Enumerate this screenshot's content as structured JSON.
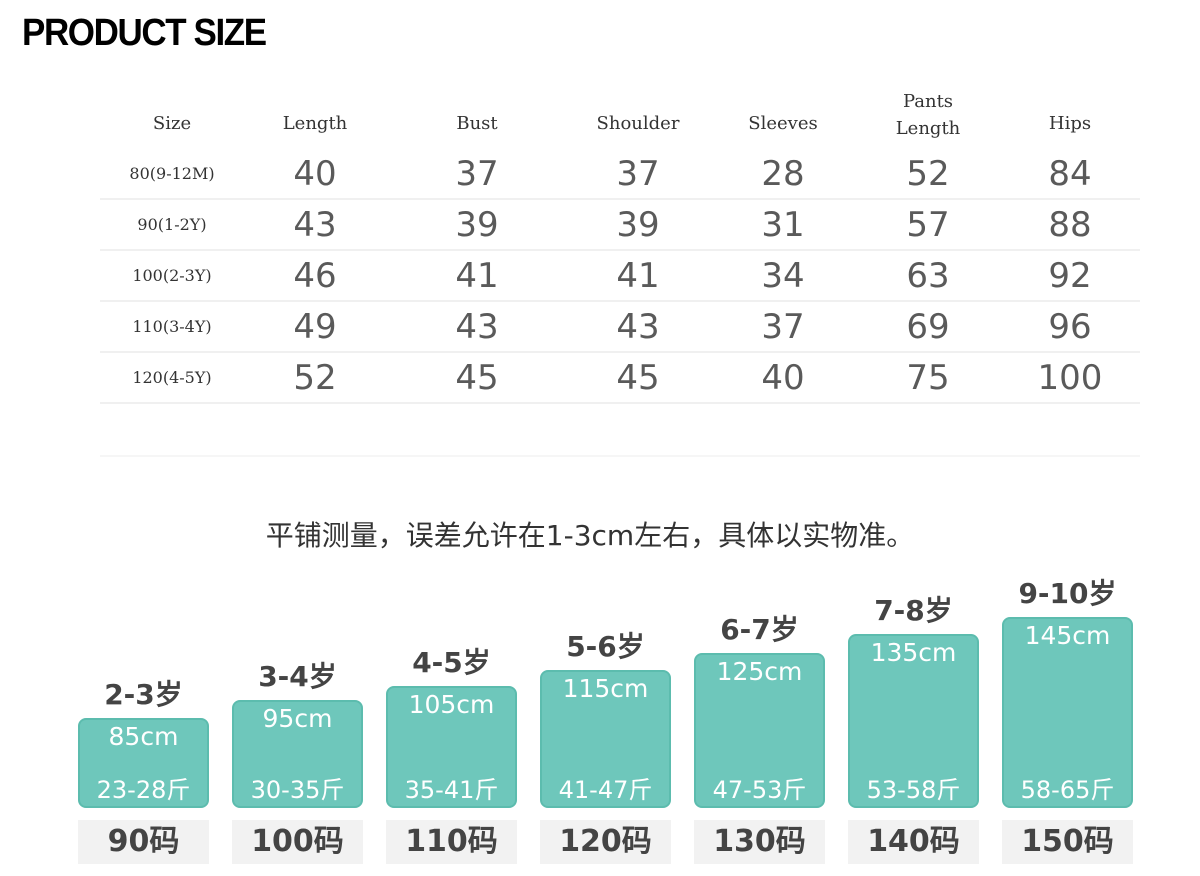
{
  "header": {
    "title": "PRODUCT SIZE"
  },
  "table": {
    "columns": [
      "Size",
      "Length",
      "Bust",
      "Shoulder",
      "Sleeves",
      "Pants Length",
      "Hips"
    ],
    "rows": [
      [
        "80(9-12M)",
        40,
        37,
        37,
        28,
        52,
        84
      ],
      [
        "90(1-2Y)",
        43,
        39,
        39,
        31,
        57,
        88
      ],
      [
        "100(2-3Y)",
        46,
        41,
        41,
        34,
        63,
        92
      ],
      [
        "110(3-4Y)",
        49,
        43,
        43,
        37,
        69,
        96
      ],
      [
        "120(4-5Y)",
        52,
        45,
        45,
        40,
        75,
        100
      ]
    ]
  },
  "note": "平铺测量，误差允许在1-3cm左右，具体以实物准。",
  "cards": [
    {
      "age": "2-3岁",
      "height": "85cm",
      "weight": "23-28斤",
      "code": "90码"
    },
    {
      "age": "3-4岁",
      "height": "95cm",
      "weight": "30-35斤",
      "code": "100码"
    },
    {
      "age": "4-5岁",
      "height": "105cm",
      "weight": "35-41斤",
      "code": "110码"
    },
    {
      "age": "5-6岁",
      "height": "115cm",
      "weight": "41-47斤",
      "code": "120码"
    },
    {
      "age": "6-7岁",
      "height": "125cm",
      "weight": "47-53斤",
      "code": "130码"
    },
    {
      "age": "7-8岁",
      "height": "135cm",
      "weight": "53-58斤",
      "code": "140码"
    },
    {
      "age": "9-10岁",
      "height": "145cm",
      "weight": "58-65斤",
      "code": "150码"
    }
  ]
}
